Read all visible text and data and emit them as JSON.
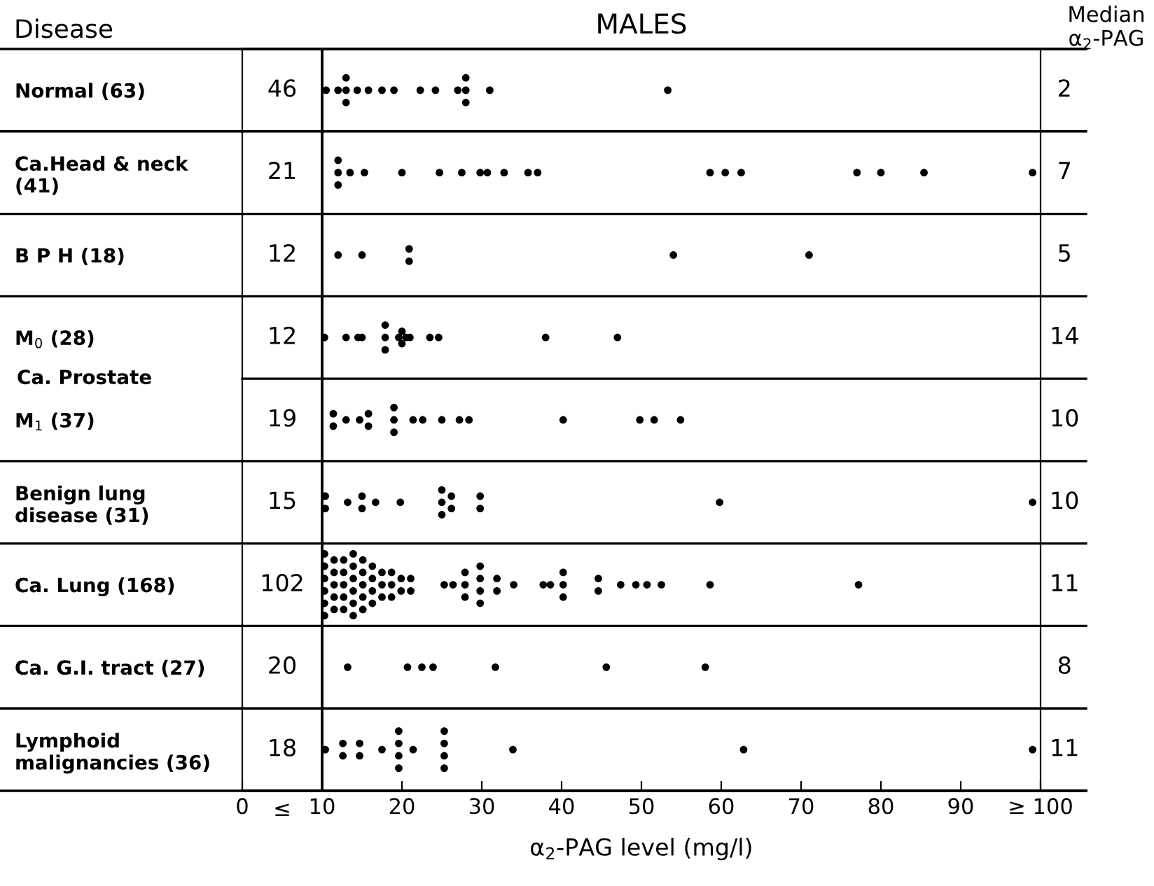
{
  "chart_data": {
    "type": "scatter",
    "orientation": "horizontal",
    "title": "MALES",
    "xlabel": "α$_{2}$-PAG level (mg/l)",
    "categories": [
      "Normal (63)",
      "Ca.Head & neck\n(41)",
      "B P H (18)",
      "M$_{0}$ (28)",
      "M$_{1}$ (37)",
      "Benign lung\ndisease (31)",
      "Ca. Lung (168)",
      "Ca. G.I. tract (27)",
      "Lymphoid\nmalignancies (36)"
    ],
    "series": [
      {
        "color": "#000000",
        "x": [
          "Normal (63)",
          "Normal (63)",
          "Normal (63)",
          "Normal (63)",
          "Normal (63)",
          "Normal (63)",
          "Normal (63)",
          "Normal (63)",
          "Normal (63)",
          "Normal (63)",
          "Normal (63)",
          "Normal (63)",
          "Normal (63)",
          "Normal (63)",
          "Normal (63)",
          "Normal (63)",
          "Normal (63)"
        ],
        "values": [
          10.5,
          12,
          13,
          13,
          13,
          14.4,
          15.8,
          17.5,
          19,
          22.3,
          24.2,
          27,
          28,
          28,
          28,
          31,
          53.3
        ]
      },
      {
        "color": "#000000",
        "x": [
          "Ca.Head & neck\n(41)",
          "Ca.Head & neck\n(41)",
          "Ca.Head & neck\n(41)",
          "Ca.Head & neck\n(41)",
          "Ca.Head & neck\n(41)",
          "Ca.Head & neck\n(41)",
          "Ca.Head & neck\n(41)",
          "Ca.Head & neck\n(41)",
          "Ca.Head & neck\n(41)",
          "Ca.Head & neck\n(41)",
          "Ca.Head & neck\n(41)",
          "Ca.Head & neck\n(41)",
          "Ca.Head & neck\n(41)",
          "Ca.Head & neck\n(41)",
          "Ca.Head & neck\n(41)",
          "Ca.Head & neck\n(41)",
          "Ca.Head & neck\n(41)",
          "Ca.Head & neck\n(41)",
          "Ca.Head & neck\n(41)",
          "Ca.Head & neck\n(41)"
        ],
        "values": [
          12,
          12,
          12,
          13.5,
          15.3,
          20,
          24.7,
          27.5,
          29.8,
          30.7,
          32.8,
          35.8,
          37,
          58.6,
          60.5,
          62.5,
          77,
          80,
          85.4,
          99
        ]
      },
      {
        "color": "#000000",
        "x": [
          "B P H (18)",
          "B P H (18)",
          "B P H (18)",
          "B P H (18)",
          "B P H (18)",
          "B P H (18)"
        ],
        "values": [
          12,
          15,
          20.9,
          20.9,
          54,
          71
        ]
      },
      {
        "color": "#000000",
        "x": [
          "M$_{0}$ (28)",
          "M$_{0}$ (28)",
          "M$_{0}$ (28)",
          "M$_{0}$ (28)",
          "M$_{0}$ (28)",
          "M$_{0}$ (28)",
          "M$_{0}$ (28)",
          "M$_{0}$ (28)",
          "M$_{0}$ (28)",
          "M$_{0}$ (28)",
          "M$_{0}$ (28)",
          "M$_{0}$ (28)",
          "M$_{0}$ (28)",
          "M$_{0}$ (28)",
          "M$_{0}$ (28)",
          "M$_{0}$ (28)"
        ],
        "values": [
          10.3,
          13,
          14.5,
          15,
          17.9,
          17.9,
          17.9,
          19.6,
          20,
          20,
          20.5,
          21,
          23.5,
          24.6,
          38,
          47
        ]
      },
      {
        "color": "#000000",
        "x": [
          "M$_{1}$ (37)",
          "M$_{1}$ (37)",
          "M$_{1}$ (37)",
          "M$_{1}$ (37)",
          "M$_{1}$ (37)",
          "M$_{1}$ (37)",
          "M$_{1}$ (37)",
          "M$_{1}$ (37)",
          "M$_{1}$ (37)",
          "M$_{1}$ (37)",
          "M$_{1}$ (37)",
          "M$_{1}$ (37)",
          "M$_{1}$ (37)",
          "M$_{1}$ (37)",
          "M$_{1}$ (37)",
          "M$_{1}$ (37)",
          "M$_{1}$ (37)",
          "M$_{1}$ (37)"
        ],
        "values": [
          11.4,
          11.4,
          13,
          14.7,
          15.8,
          15.8,
          19,
          19,
          19,
          21.4,
          22.6,
          25,
          27.2,
          28.4,
          40.2,
          49.8,
          51.6,
          54.9
        ]
      },
      {
        "color": "#000000",
        "x": [
          "Benign lung\ndisease (31)",
          "Benign lung\ndisease (31)",
          "Benign lung\ndisease (31)",
          "Benign lung\ndisease (31)",
          "Benign lung\ndisease (31)",
          "Benign lung\ndisease (31)",
          "Benign lung\ndisease (31)",
          "Benign lung\ndisease (31)",
          "Benign lung\ndisease (31)",
          "Benign lung\ndisease (31)",
          "Benign lung\ndisease (31)",
          "Benign lung\ndisease (31)",
          "Benign lung\ndisease (31)",
          "Benign lung\ndisease (31)",
          "Benign lung\ndisease (31)",
          "Benign lung\ndisease (31)"
        ],
        "values": [
          10.4,
          10.4,
          13.2,
          15,
          15,
          16.7,
          19.8,
          25,
          25,
          25,
          26.2,
          26.2,
          29.8,
          29.8,
          59.8,
          99
        ]
      },
      {
        "color": "#000000",
        "x": [
          "Ca. Lung (168)",
          "Ca. Lung (168)",
          "Ca. Lung (168)",
          "Ca. Lung (168)",
          "Ca. Lung (168)",
          "Ca. Lung (168)",
          "Ca. Lung (168)",
          "Ca. Lung (168)",
          "Ca. Lung (168)",
          "Ca. Lung (168)",
          "Ca. Lung (168)",
          "Ca. Lung (168)",
          "Ca. Lung (168)",
          "Ca. Lung (168)",
          "Ca. Lung (168)",
          "Ca. Lung (168)",
          "Ca. Lung (168)",
          "Ca. Lung (168)",
          "Ca. Lung (168)",
          "Ca. Lung (168)",
          "Ca. Lung (168)",
          "Ca. Lung (168)",
          "Ca. Lung (168)",
          "Ca. Lung (168)",
          "Ca. Lung (168)",
          "Ca. Lung (168)",
          "Ca. Lung (168)",
          "Ca. Lung (168)",
          "Ca. Lung (168)",
          "Ca. Lung (168)",
          "Ca. Lung (168)",
          "Ca. Lung (168)",
          "Ca. Lung (168)",
          "Ca. Lung (168)",
          "Ca. Lung (168)",
          "Ca. Lung (168)",
          "Ca. Lung (168)",
          "Ca. Lung (168)",
          "Ca. Lung (168)",
          "Ca. Lung (168)",
          "Ca. Lung (168)",
          "Ca. Lung (168)",
          "Ca. Lung (168)",
          "Ca. Lung (168)",
          "Ca. Lung (168)",
          "Ca. Lung (168)",
          "Ca. Lung (168)",
          "Ca. Lung (168)",
          "Ca. Lung (168)",
          "Ca. Lung (168)",
          "Ca. Lung (168)",
          "Ca. Lung (168)",
          "Ca. Lung (168)",
          "Ca. Lung (168)",
          "Ca. Lung (168)",
          "Ca. Lung (168)",
          "Ca. Lung (168)",
          "Ca. Lung (168)",
          "Ca. Lung (168)",
          "Ca. Lung (168)",
          "Ca. Lung (168)",
          "Ca. Lung (168)",
          "Ca. Lung (168)",
          "Ca. Lung (168)",
          "Ca. Lung (168)",
          "Ca. Lung (168)"
        ],
        "values": [
          10.3,
          10.3,
          10.3,
          10.3,
          10.3,
          10.3,
          11.5,
          11.5,
          11.5,
          11.5,
          11.5,
          12.7,
          12.7,
          12.7,
          12.7,
          12.7,
          13.9,
          13.9,
          13.9,
          13.9,
          13.9,
          13.9,
          15.1,
          15.1,
          15.1,
          15.1,
          15.1,
          16.3,
          16.3,
          16.3,
          16.3,
          17.5,
          17.5,
          17.5,
          18.7,
          18.7,
          18.7,
          19.9,
          19.9,
          21.1,
          21.1,
          25.3,
          26.4,
          27.9,
          27.9,
          27.9,
          29.8,
          29.8,
          29.8,
          29.8,
          31.9,
          31.9,
          34,
          37.7,
          38.6,
          40.2,
          40.2,
          40.2,
          44.6,
          44.6,
          47.4,
          49.3,
          50.7,
          52.5,
          58.6,
          77.2
        ]
      },
      {
        "color": "#000000",
        "x": [
          "Ca. G.I. tract (27)",
          "Ca. G.I. tract (27)",
          "Ca. G.I. tract (27)",
          "Ca. G.I. tract (27)",
          "Ca. G.I. tract (27)",
          "Ca. G.I. tract (27)",
          "Ca. G.I. tract (27)"
        ],
        "values": [
          13.2,
          20.7,
          22.5,
          23.9,
          31.7,
          45.6,
          58
        ]
      },
      {
        "color": "#000000",
        "x": [
          "Lymphoid\nmalignancies (36)",
          "Lymphoid\nmalignancies (36)",
          "Lymphoid\nmalignancies (36)",
          "Lymphoid\nmalignancies (36)",
          "Lymphoid\nmalignancies (36)",
          "Lymphoid\nmalignancies (36)",
          "Lymphoid\nmalignancies (36)",
          "Lymphoid\nmalignancies (36)",
          "Lymphoid\nmalignancies (36)",
          "Lymphoid\nmalignancies (36)",
          "Lymphoid\nmalignancies (36)",
          "Lymphoid\nmalignancies (36)",
          "Lymphoid\nmalignancies (36)",
          "Lymphoid\nmalignancies (36)",
          "Lymphoid\nmalignancies (36)",
          "Lymphoid\nmalignancies (36)",
          "Lymphoid\nmalignancies (36)",
          "Lymphoid\nmalignancies (36)"
        ],
        "values": [
          10.4,
          12.6,
          12.6,
          14.7,
          14.7,
          17.5,
          19.6,
          19.6,
          19.6,
          19.6,
          21.4,
          25.3,
          25.3,
          25.3,
          25.3,
          33.9,
          62.8,
          99
        ]
      }
    ],
    "xlim": [
      0,
      100
    ],
    "xticks": [
      0,
      {
        "value": 10,
        "label": "10"
      },
      20,
      30,
      40,
      50,
      60,
      70,
      80,
      90,
      {
        "value": 100,
        "label": "≥ 100"
      }
    ],
    "ref_lines": [
      {
        "axis": "x",
        "value": 10
      }
    ],
    "marker": "circle",
    "grid": false,
    "legend": false,
    "annotations": [
      "Disease",
      "Median\nα$_{2}$-PAG",
      "Ca. Prostate",
      "≤",
      "46",
      "21",
      "12",
      "12",
      "19",
      "15",
      "102",
      "20",
      "18",
      "2",
      "7",
      "5",
      "14",
      "10",
      "10",
      "11",
      "8",
      "11"
    ]
  }
}
